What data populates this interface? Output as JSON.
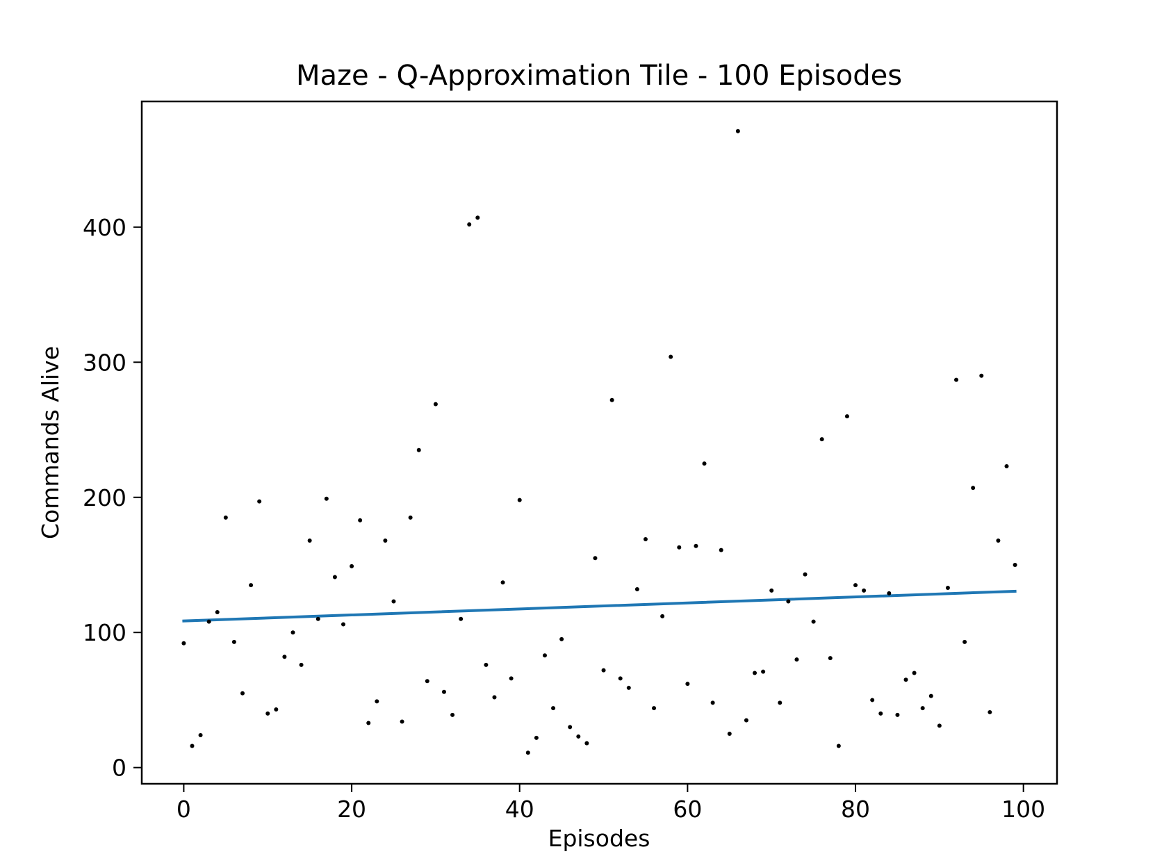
{
  "chart_data": {
    "type": "scatter",
    "title": "Maze - Q-Approximation Tile - 100 Episodes",
    "xlabel": "Episodes",
    "ylabel": "Commands Alive",
    "xlim": [
      -5,
      104
    ],
    "ylim": [
      -12,
      493
    ],
    "xticks": [
      0,
      20,
      40,
      60,
      80,
      100
    ],
    "yticks": [
      0,
      100,
      200,
      300,
      400
    ],
    "grid": false,
    "legend": "none",
    "colors": {
      "points": "#000000",
      "trend": "#1f77b4"
    },
    "series": [
      {
        "kind": "points",
        "x": [
          0,
          1,
          2,
          3,
          4,
          5,
          6,
          7,
          8,
          9,
          10,
          11,
          12,
          13,
          14,
          15,
          16,
          17,
          18,
          19,
          20,
          21,
          22,
          23,
          24,
          25,
          26,
          27,
          28,
          29,
          30,
          31,
          32,
          33,
          34,
          35,
          36,
          37,
          38,
          39,
          40,
          41,
          42,
          43,
          44,
          45,
          46,
          47,
          48,
          49,
          50,
          51,
          52,
          53,
          54,
          55,
          56,
          57,
          58,
          59,
          60,
          61,
          62,
          63,
          64,
          65,
          66,
          67,
          68,
          69,
          70,
          71,
          72,
          73,
          74,
          75,
          76,
          77,
          78,
          79,
          80,
          81,
          82,
          83,
          84,
          85,
          86,
          87,
          88,
          89,
          90,
          91,
          92,
          93,
          94,
          95,
          96,
          97,
          98,
          99
        ],
        "y": [
          92,
          16,
          24,
          108,
          115,
          185,
          93,
          55,
          135,
          197,
          40,
          43,
          82,
          100,
          76,
          168,
          110,
          199,
          141,
          106,
          149,
          183,
          33,
          49,
          168,
          123,
          34,
          185,
          235,
          64,
          269,
          56,
          39,
          110,
          402,
          407,
          76,
          52,
          137,
          66,
          198,
          11,
          22,
          83,
          44,
          95,
          30,
          23,
          18,
          155,
          72,
          272,
          66,
          59,
          132,
          169,
          44,
          112,
          304,
          163,
          62,
          164,
          225,
          48,
          161,
          25,
          471,
          35,
          70,
          71,
          131,
          48,
          123,
          80,
          143,
          108,
          243,
          81,
          16,
          260,
          135,
          131,
          50,
          40,
          129,
          39,
          65,
          70,
          44,
          53,
          31,
          133,
          287,
          93,
          207,
          290,
          41,
          168,
          223,
          150
        ]
      },
      {
        "kind": "trend",
        "x": [
          0,
          99
        ],
        "y": [
          108.5,
          130.5
        ]
      }
    ]
  }
}
